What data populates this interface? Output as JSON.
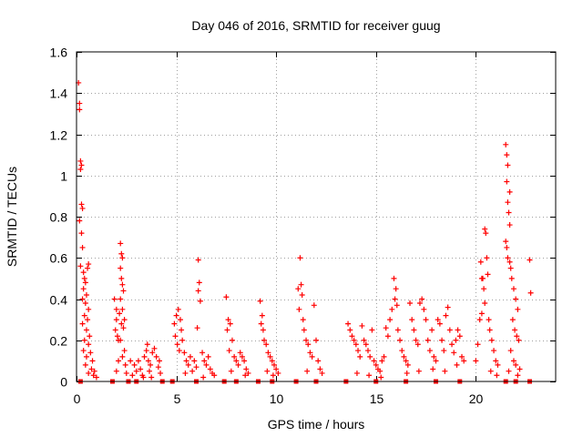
{
  "chart_data": {
    "type": "scatter",
    "title": "Day 046 of 2016, SRMTID for receiver guug",
    "xlabel": "GPS time / hours",
    "ylabel": "SRMTID / TECUs",
    "xlim": [
      0,
      24
    ],
    "ylim": [
      0,
      1.6
    ],
    "x_ticks": [
      "0",
      "5",
      "10",
      "15",
      "20"
    ],
    "y_ticks": [
      "0",
      "0.2",
      "0.4",
      "0.6",
      "0.8",
      "1",
      "1.2",
      "1.4",
      "1.6"
    ],
    "grid": true,
    "marker": "+",
    "color": "#ff0000",
    "x_tick_values": [
      0,
      5,
      10,
      15,
      20
    ],
    "y_tick_values": [
      0,
      0.2,
      0.4,
      0.6,
      0.8,
      1.0,
      1.2,
      1.4,
      1.6
    ],
    "series": [
      {
        "name": "SRMTID",
        "points": [
          [
            0.1,
            1.45
          ],
          [
            0.15,
            1.35
          ],
          [
            0.15,
            1.32
          ],
          [
            0.2,
            1.07
          ],
          [
            0.25,
            1.05
          ],
          [
            0.2,
            1.03
          ],
          [
            0.25,
            0.86
          ],
          [
            0.3,
            0.84
          ],
          [
            0.15,
            0.78
          ],
          [
            0.25,
            0.72
          ],
          [
            0.3,
            0.65
          ],
          [
            0.2,
            0.56
          ],
          [
            0.35,
            0.53
          ],
          [
            0.4,
            0.5
          ],
          [
            0.45,
            0.48
          ],
          [
            0.55,
            0.55
          ],
          [
            0.6,
            0.57
          ],
          [
            0.35,
            0.45
          ],
          [
            0.5,
            0.42
          ],
          [
            0.3,
            0.4
          ],
          [
            0.45,
            0.38
          ],
          [
            0.6,
            0.35
          ],
          [
            0.4,
            0.32
          ],
          [
            0.55,
            0.3
          ],
          [
            0.3,
            0.28
          ],
          [
            0.5,
            0.25
          ],
          [
            0.65,
            0.22
          ],
          [
            0.4,
            0.2
          ],
          [
            0.6,
            0.18
          ],
          [
            0.35,
            0.15
          ],
          [
            0.7,
            0.14
          ],
          [
            0.5,
            0.12
          ],
          [
            0.8,
            0.1
          ],
          [
            0.45,
            0.08
          ],
          [
            0.75,
            0.06
          ],
          [
            0.9,
            0.05
          ],
          [
            0.6,
            0.04
          ],
          [
            0.85,
            0.03
          ],
          [
            1.0,
            0.02
          ],
          [
            0.2,
            0.0
          ],
          [
            1.9,
            0.4
          ],
          [
            2.0,
            0.35
          ],
          [
            2.0,
            0.3
          ],
          [
            1.95,
            0.25
          ],
          [
            2.05,
            0.22
          ],
          [
            2.1,
            0.2
          ],
          [
            2.2,
            0.67
          ],
          [
            2.25,
            0.62
          ],
          [
            2.3,
            0.6
          ],
          [
            2.2,
            0.55
          ],
          [
            2.25,
            0.5
          ],
          [
            2.3,
            0.47
          ],
          [
            2.35,
            0.44
          ],
          [
            2.2,
            0.4
          ],
          [
            2.3,
            0.35
          ],
          [
            2.15,
            0.33
          ],
          [
            2.4,
            0.3
          ],
          [
            2.25,
            0.28
          ],
          [
            2.35,
            0.26
          ],
          [
            2.2,
            0.2
          ],
          [
            2.4,
            0.15
          ],
          [
            2.3,
            0.12
          ],
          [
            2.1,
            0.1
          ],
          [
            2.45,
            0.08
          ],
          [
            2.0,
            0.05
          ],
          [
            2.5,
            0.04
          ],
          [
            1.8,
            0.0
          ],
          [
            2.7,
            0.1
          ],
          [
            2.9,
            0.08
          ],
          [
            3.0,
            0.05
          ],
          [
            3.1,
            0.1
          ],
          [
            3.2,
            0.06
          ],
          [
            3.3,
            0.03
          ],
          [
            3.4,
            0.12
          ],
          [
            3.5,
            0.15
          ],
          [
            3.6,
            0.1
          ],
          [
            3.7,
            0.08
          ],
          [
            3.8,
            0.14
          ],
          [
            3.9,
            0.16
          ],
          [
            4.0,
            0.12
          ],
          [
            4.1,
            0.07
          ],
          [
            4.2,
            0.04
          ],
          [
            3.55,
            0.18
          ],
          [
            3.65,
            0.05
          ],
          [
            2.8,
            0.03
          ],
          [
            3.35,
            0.02
          ],
          [
            3.75,
            0.02
          ],
          [
            4.15,
            0.1
          ],
          [
            2.6,
            0.0
          ],
          [
            3.0,
            0.0
          ],
          [
            4.3,
            0.0
          ],
          [
            4.9,
            0.28
          ],
          [
            5.0,
            0.32
          ],
          [
            5.1,
            0.35
          ],
          [
            5.2,
            0.3
          ],
          [
            4.95,
            0.22
          ],
          [
            5.05,
            0.18
          ],
          [
            5.15,
            0.15
          ],
          [
            5.3,
            0.2
          ],
          [
            5.4,
            0.14
          ],
          [
            5.5,
            0.1
          ],
          [
            5.6,
            0.08
          ],
          [
            5.7,
            0.12
          ],
          [
            5.8,
            0.05
          ],
          [
            5.9,
            0.1
          ],
          [
            6.0,
            0.07
          ],
          [
            6.1,
            0.59
          ],
          [
            6.15,
            0.48
          ],
          [
            6.1,
            0.44
          ],
          [
            6.2,
            0.39
          ],
          [
            6.05,
            0.26
          ],
          [
            6.3,
            0.14
          ],
          [
            6.4,
            0.1
          ],
          [
            6.5,
            0.08
          ],
          [
            6.6,
            0.12
          ],
          [
            6.7,
            0.06
          ],
          [
            6.8,
            0.04
          ],
          [
            6.9,
            0.03
          ],
          [
            5.25,
            0.25
          ],
          [
            5.45,
            0.04
          ],
          [
            6.35,
            0.02
          ],
          [
            4.8,
            0.0
          ],
          [
            6.0,
            0.0
          ],
          [
            7.5,
            0.41
          ],
          [
            7.6,
            0.3
          ],
          [
            7.7,
            0.28
          ],
          [
            7.55,
            0.25
          ],
          [
            7.8,
            0.2
          ],
          [
            7.65,
            0.15
          ],
          [
            7.9,
            0.12
          ],
          [
            8.0,
            0.1
          ],
          [
            8.1,
            0.08
          ],
          [
            8.2,
            0.14
          ],
          [
            8.3,
            0.12
          ],
          [
            8.4,
            0.1
          ],
          [
            8.5,
            0.06
          ],
          [
            8.6,
            0.04
          ],
          [
            7.75,
            0.05
          ],
          [
            8.45,
            0.03
          ],
          [
            7.4,
            0.0
          ],
          [
            8.0,
            0.0
          ],
          [
            9.2,
            0.39
          ],
          [
            9.3,
            0.32
          ],
          [
            9.25,
            0.28
          ],
          [
            9.35,
            0.25
          ],
          [
            9.4,
            0.2
          ],
          [
            9.5,
            0.18
          ],
          [
            9.6,
            0.14
          ],
          [
            9.7,
            0.12
          ],
          [
            9.8,
            0.1
          ],
          [
            9.9,
            0.08
          ],
          [
            10.0,
            0.06
          ],
          [
            10.1,
            0.04
          ],
          [
            9.55,
            0.05
          ],
          [
            9.85,
            0.03
          ],
          [
            9.1,
            0.0
          ],
          [
            9.8,
            0.0
          ],
          [
            11.2,
            0.6
          ],
          [
            11.1,
            0.45
          ],
          [
            11.25,
            0.47
          ],
          [
            11.3,
            0.42
          ],
          [
            11.15,
            0.35
          ],
          [
            11.35,
            0.3
          ],
          [
            11.4,
            0.25
          ],
          [
            11.5,
            0.2
          ],
          [
            11.6,
            0.18
          ],
          [
            11.7,
            0.14
          ],
          [
            11.8,
            0.12
          ],
          [
            11.9,
            0.37
          ],
          [
            12.0,
            0.2
          ],
          [
            12.1,
            0.1
          ],
          [
            12.2,
            0.06
          ],
          [
            12.3,
            0.04
          ],
          [
            11.55,
            0.05
          ],
          [
            11.0,
            0.0
          ],
          [
            12.0,
            0.0
          ],
          [
            13.6,
            0.28
          ],
          [
            13.7,
            0.25
          ],
          [
            13.8,
            0.22
          ],
          [
            13.9,
            0.2
          ],
          [
            14.0,
            0.18
          ],
          [
            14.1,
            0.15
          ],
          [
            14.2,
            0.12
          ],
          [
            14.3,
            0.27
          ],
          [
            14.4,
            0.2
          ],
          [
            14.5,
            0.18
          ],
          [
            14.6,
            0.15
          ],
          [
            14.7,
            0.12
          ],
          [
            14.8,
            0.25
          ],
          [
            14.9,
            0.1
          ],
          [
            15.0,
            0.08
          ],
          [
            15.1,
            0.06
          ],
          [
            15.2,
            0.05
          ],
          [
            15.3,
            0.1
          ],
          [
            15.4,
            0.12
          ],
          [
            15.5,
            0.26
          ],
          [
            15.6,
            0.22
          ],
          [
            15.7,
            0.3
          ],
          [
            15.8,
            0.35
          ],
          [
            15.9,
            0.5
          ],
          [
            16.0,
            0.45
          ],
          [
            15.95,
            0.4
          ],
          [
            16.05,
            0.37
          ],
          [
            16.1,
            0.25
          ],
          [
            16.2,
            0.2
          ],
          [
            16.3,
            0.15
          ],
          [
            16.4,
            0.12
          ],
          [
            16.5,
            0.1
          ],
          [
            16.6,
            0.08
          ],
          [
            16.7,
            0.38
          ],
          [
            16.8,
            0.3
          ],
          [
            16.9,
            0.25
          ],
          [
            17.0,
            0.2
          ],
          [
            17.1,
            0.18
          ],
          [
            17.2,
            0.38
          ],
          [
            17.3,
            0.4
          ],
          [
            17.4,
            0.35
          ],
          [
            17.5,
            0.3
          ],
          [
            17.6,
            0.2
          ],
          [
            17.7,
            0.15
          ],
          [
            17.8,
            0.25
          ],
          [
            17.9,
            0.12
          ],
          [
            18.0,
            0.1
          ],
          [
            18.1,
            0.3
          ],
          [
            18.2,
            0.28
          ],
          [
            18.3,
            0.2
          ],
          [
            18.4,
            0.15
          ],
          [
            18.5,
            0.32
          ],
          [
            18.6,
            0.36
          ],
          [
            18.7,
            0.25
          ],
          [
            18.8,
            0.18
          ],
          [
            18.9,
            0.14
          ],
          [
            19.0,
            0.2
          ],
          [
            19.1,
            0.25
          ],
          [
            19.2,
            0.22
          ],
          [
            19.3,
            0.12
          ],
          [
            19.4,
            0.1
          ],
          [
            14.05,
            0.04
          ],
          [
            14.65,
            0.03
          ],
          [
            15.25,
            0.02
          ],
          [
            16.55,
            0.04
          ],
          [
            17.15,
            0.05
          ],
          [
            17.85,
            0.06
          ],
          [
            18.45,
            0.05
          ],
          [
            19.05,
            0.08
          ],
          [
            13.5,
            0.0
          ],
          [
            15.0,
            0.0
          ],
          [
            16.5,
            0.0
          ],
          [
            18.0,
            0.0
          ],
          [
            19.2,
            0.0
          ],
          [
            20.0,
            0.1
          ],
          [
            20.1,
            0.18
          ],
          [
            20.2,
            0.3
          ],
          [
            20.3,
            0.5
          ],
          [
            20.25,
            0.58
          ],
          [
            20.35,
            0.5
          ],
          [
            20.4,
            0.45
          ],
          [
            20.45,
            0.38
          ],
          [
            20.3,
            0.33
          ],
          [
            20.5,
            0.72
          ],
          [
            20.45,
            0.74
          ],
          [
            20.55,
            0.6
          ],
          [
            20.6,
            0.52
          ],
          [
            20.65,
            0.3
          ],
          [
            20.7,
            0.25
          ],
          [
            20.8,
            0.2
          ],
          [
            20.9,
            0.15
          ],
          [
            21.0,
            0.1
          ],
          [
            21.1,
            0.08
          ],
          [
            20.75,
            0.05
          ],
          [
            21.05,
            0.03
          ],
          [
            21.5,
            1.15
          ],
          [
            21.55,
            1.1
          ],
          [
            21.6,
            1.05
          ],
          [
            21.55,
            0.97
          ],
          [
            21.7,
            0.92
          ],
          [
            21.6,
            0.87
          ],
          [
            21.65,
            0.82
          ],
          [
            21.7,
            0.76
          ],
          [
            21.5,
            0.68
          ],
          [
            21.55,
            0.65
          ],
          [
            21.6,
            0.6
          ],
          [
            21.7,
            0.58
          ],
          [
            21.75,
            0.55
          ],
          [
            21.8,
            0.5
          ],
          [
            21.9,
            0.45
          ],
          [
            22.0,
            0.4
          ],
          [
            22.1,
            0.35
          ],
          [
            21.85,
            0.3
          ],
          [
            21.95,
            0.25
          ],
          [
            22.05,
            0.22
          ],
          [
            22.15,
            0.2
          ],
          [
            21.75,
            0.15
          ],
          [
            21.9,
            0.1
          ],
          [
            22.0,
            0.08
          ],
          [
            22.2,
            0.06
          ],
          [
            21.65,
            0.05
          ],
          [
            22.1,
            0.03
          ],
          [
            22.7,
            0.59
          ],
          [
            22.75,
            0.43
          ],
          [
            21.5,
            0.0
          ],
          [
            22.0,
            0.0
          ],
          [
            22.7,
            0.0
          ]
        ]
      }
    ]
  }
}
